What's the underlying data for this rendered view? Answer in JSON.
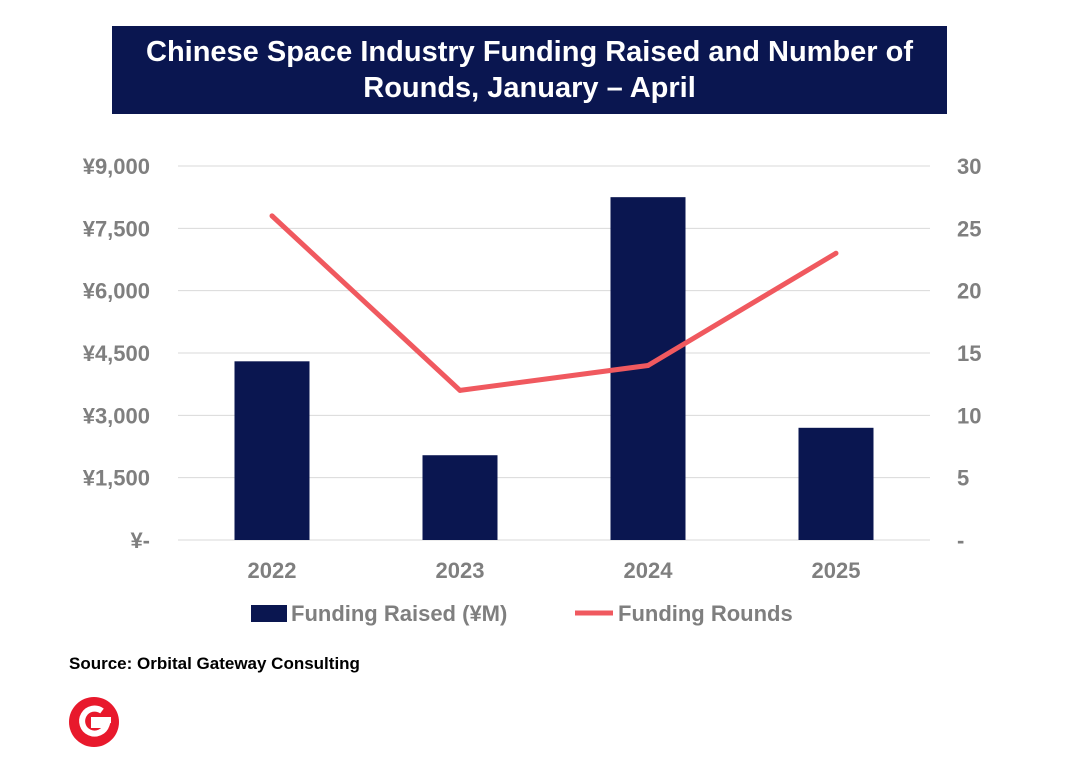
{
  "title": "Chinese Space Industry Funding Raised and Number of Rounds, January – April",
  "source": "Source: Orbital Gateway Consulting",
  "logo_icon": "orbital-gateway-logo",
  "colors": {
    "bar": "#0a1650",
    "line": "#f0595f",
    "tick_text": "#7f7f7f",
    "grid": "#d9d9d9",
    "title_bg": "#0a1650",
    "logo": "#e8192c"
  },
  "chart_data": {
    "type": "bar",
    "title": "Chinese Space Industry Funding Raised and Number of Rounds, January – April",
    "categories": [
      "2022",
      "2023",
      "2024",
      "2025"
    ],
    "series": [
      {
        "name": "Funding Raised (¥M)",
        "type": "bar",
        "axis": "left",
        "values": [
          4300,
          2040,
          8250,
          2700
        ]
      },
      {
        "name": "Funding Rounds",
        "type": "line",
        "axis": "right",
        "values": [
          26,
          12,
          14,
          23
        ]
      }
    ],
    "y_left": {
      "ylim": [
        0,
        9000
      ],
      "ticks": [
        0,
        1500,
        3000,
        4500,
        6000,
        7500,
        9000
      ],
      "tick_labels": [
        "¥-",
        "¥1,500",
        "¥3,000",
        "¥4,500",
        "¥6,000",
        "¥7,500",
        "¥9,000"
      ]
    },
    "y_right": {
      "ylim": [
        0,
        30
      ],
      "ticks": [
        0,
        5,
        10,
        15,
        20,
        25,
        30
      ],
      "tick_labels": [
        "-",
        "5",
        "10",
        "15",
        "20",
        "25",
        "30"
      ]
    },
    "grid": true,
    "legend": "bottom"
  }
}
